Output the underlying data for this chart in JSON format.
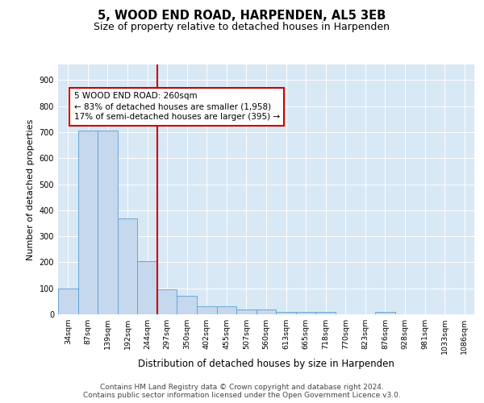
{
  "title": "5, WOOD END ROAD, HARPENDEN, AL5 3EB",
  "subtitle": "Size of property relative to detached houses in Harpenden",
  "xlabel": "Distribution of detached houses by size in Harpenden",
  "ylabel": "Number of detached properties",
  "categories": [
    "34sqm",
    "87sqm",
    "139sqm",
    "192sqm",
    "244sqm",
    "297sqm",
    "350sqm",
    "402sqm",
    "455sqm",
    "507sqm",
    "560sqm",
    "613sqm",
    "665sqm",
    "718sqm",
    "770sqm",
    "823sqm",
    "876sqm",
    "928sqm",
    "981sqm",
    "1033sqm",
    "1086sqm"
  ],
  "values": [
    100,
    707,
    707,
    370,
    205,
    95,
    72,
    30,
    32,
    18,
    18,
    10,
    8,
    8,
    0,
    0,
    10,
    0,
    0,
    0,
    0
  ],
  "bar_color": "#c5d8ed",
  "bar_edge_color": "#5a9fd4",
  "vline_x": 4.5,
  "vline_color": "#cc0000",
  "annotation_line1": "5 WOOD END ROAD: 260sqm",
  "annotation_line2": "← 83% of detached houses are smaller (1,958)",
  "annotation_line3": "17% of semi-detached houses are larger (395) →",
  "annotation_box_edgecolor": "#cc0000",
  "ylim": [
    0,
    960
  ],
  "yticks": [
    0,
    100,
    200,
    300,
    400,
    500,
    600,
    700,
    800,
    900
  ],
  "grid_color": "white",
  "plot_bg_color": "#d8e8f5",
  "footer_line1": "Contains HM Land Registry data © Crown copyright and database right 2024.",
  "footer_line2": "Contains public sector information licensed under the Open Government Licence v3.0."
}
